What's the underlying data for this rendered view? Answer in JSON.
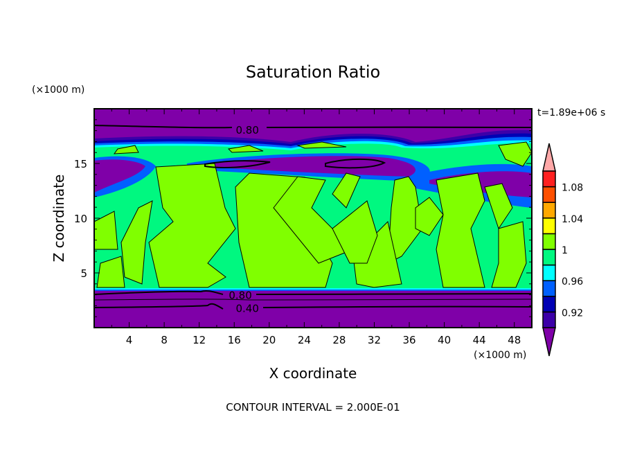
{
  "chart_data": {
    "type": "heatmap",
    "title": "Saturation Ratio",
    "xlabel": "X coordinate",
    "ylabel": "Z coordinate",
    "x_unit": "(×1000 m)",
    "y_unit": "(×1000 m)",
    "xlim": [
      0,
      50
    ],
    "ylim": [
      0,
      20
    ],
    "x_ticks": [
      "4",
      "8",
      "12",
      "16",
      "20",
      "24",
      "28",
      "32",
      "36",
      "40",
      "44",
      "48"
    ],
    "x_tick_values": [
      4,
      8,
      12,
      16,
      20,
      24,
      28,
      32,
      36,
      40,
      44,
      48
    ],
    "y_ticks": [
      "5",
      "10",
      "15"
    ],
    "y_tick_values": [
      5,
      10,
      15
    ],
    "time_label": "t=1.89e+06 s",
    "footer": "CONTOUR INTERVAL = 2.000E-01",
    "contour_labels": [
      {
        "text": "0.80",
        "x": 17.5,
        "z": 18.1
      },
      {
        "text": "0.80",
        "x": 16.7,
        "z": 3.0
      },
      {
        "text": "0.40",
        "x": 17.5,
        "z": 1.8
      }
    ],
    "colorbar": {
      "levels": [
        0.9,
        0.92,
        0.94,
        0.96,
        0.98,
        1.0,
        1.02,
        1.04,
        1.06,
        1.08,
        1.1
      ],
      "colors": [
        "#3c00a8",
        "#0000b4",
        "#0060ff",
        "#00ffff",
        "#00f880",
        "#80ff00",
        "#ffff00",
        "#ffa800",
        "#ff5000",
        "#ff2020"
      ],
      "under_color": "#7f00a8",
      "over_color": "#ffa8a8",
      "labels": [
        {
          "text": "0.92",
          "value": 0.92
        },
        {
          "text": "0.96",
          "value": 0.96
        },
        {
          "text": "1",
          "value": 1.0
        },
        {
          "text": "1.04",
          "value": 1.04
        },
        {
          "text": "1.08",
          "value": 1.08
        }
      ]
    }
  }
}
